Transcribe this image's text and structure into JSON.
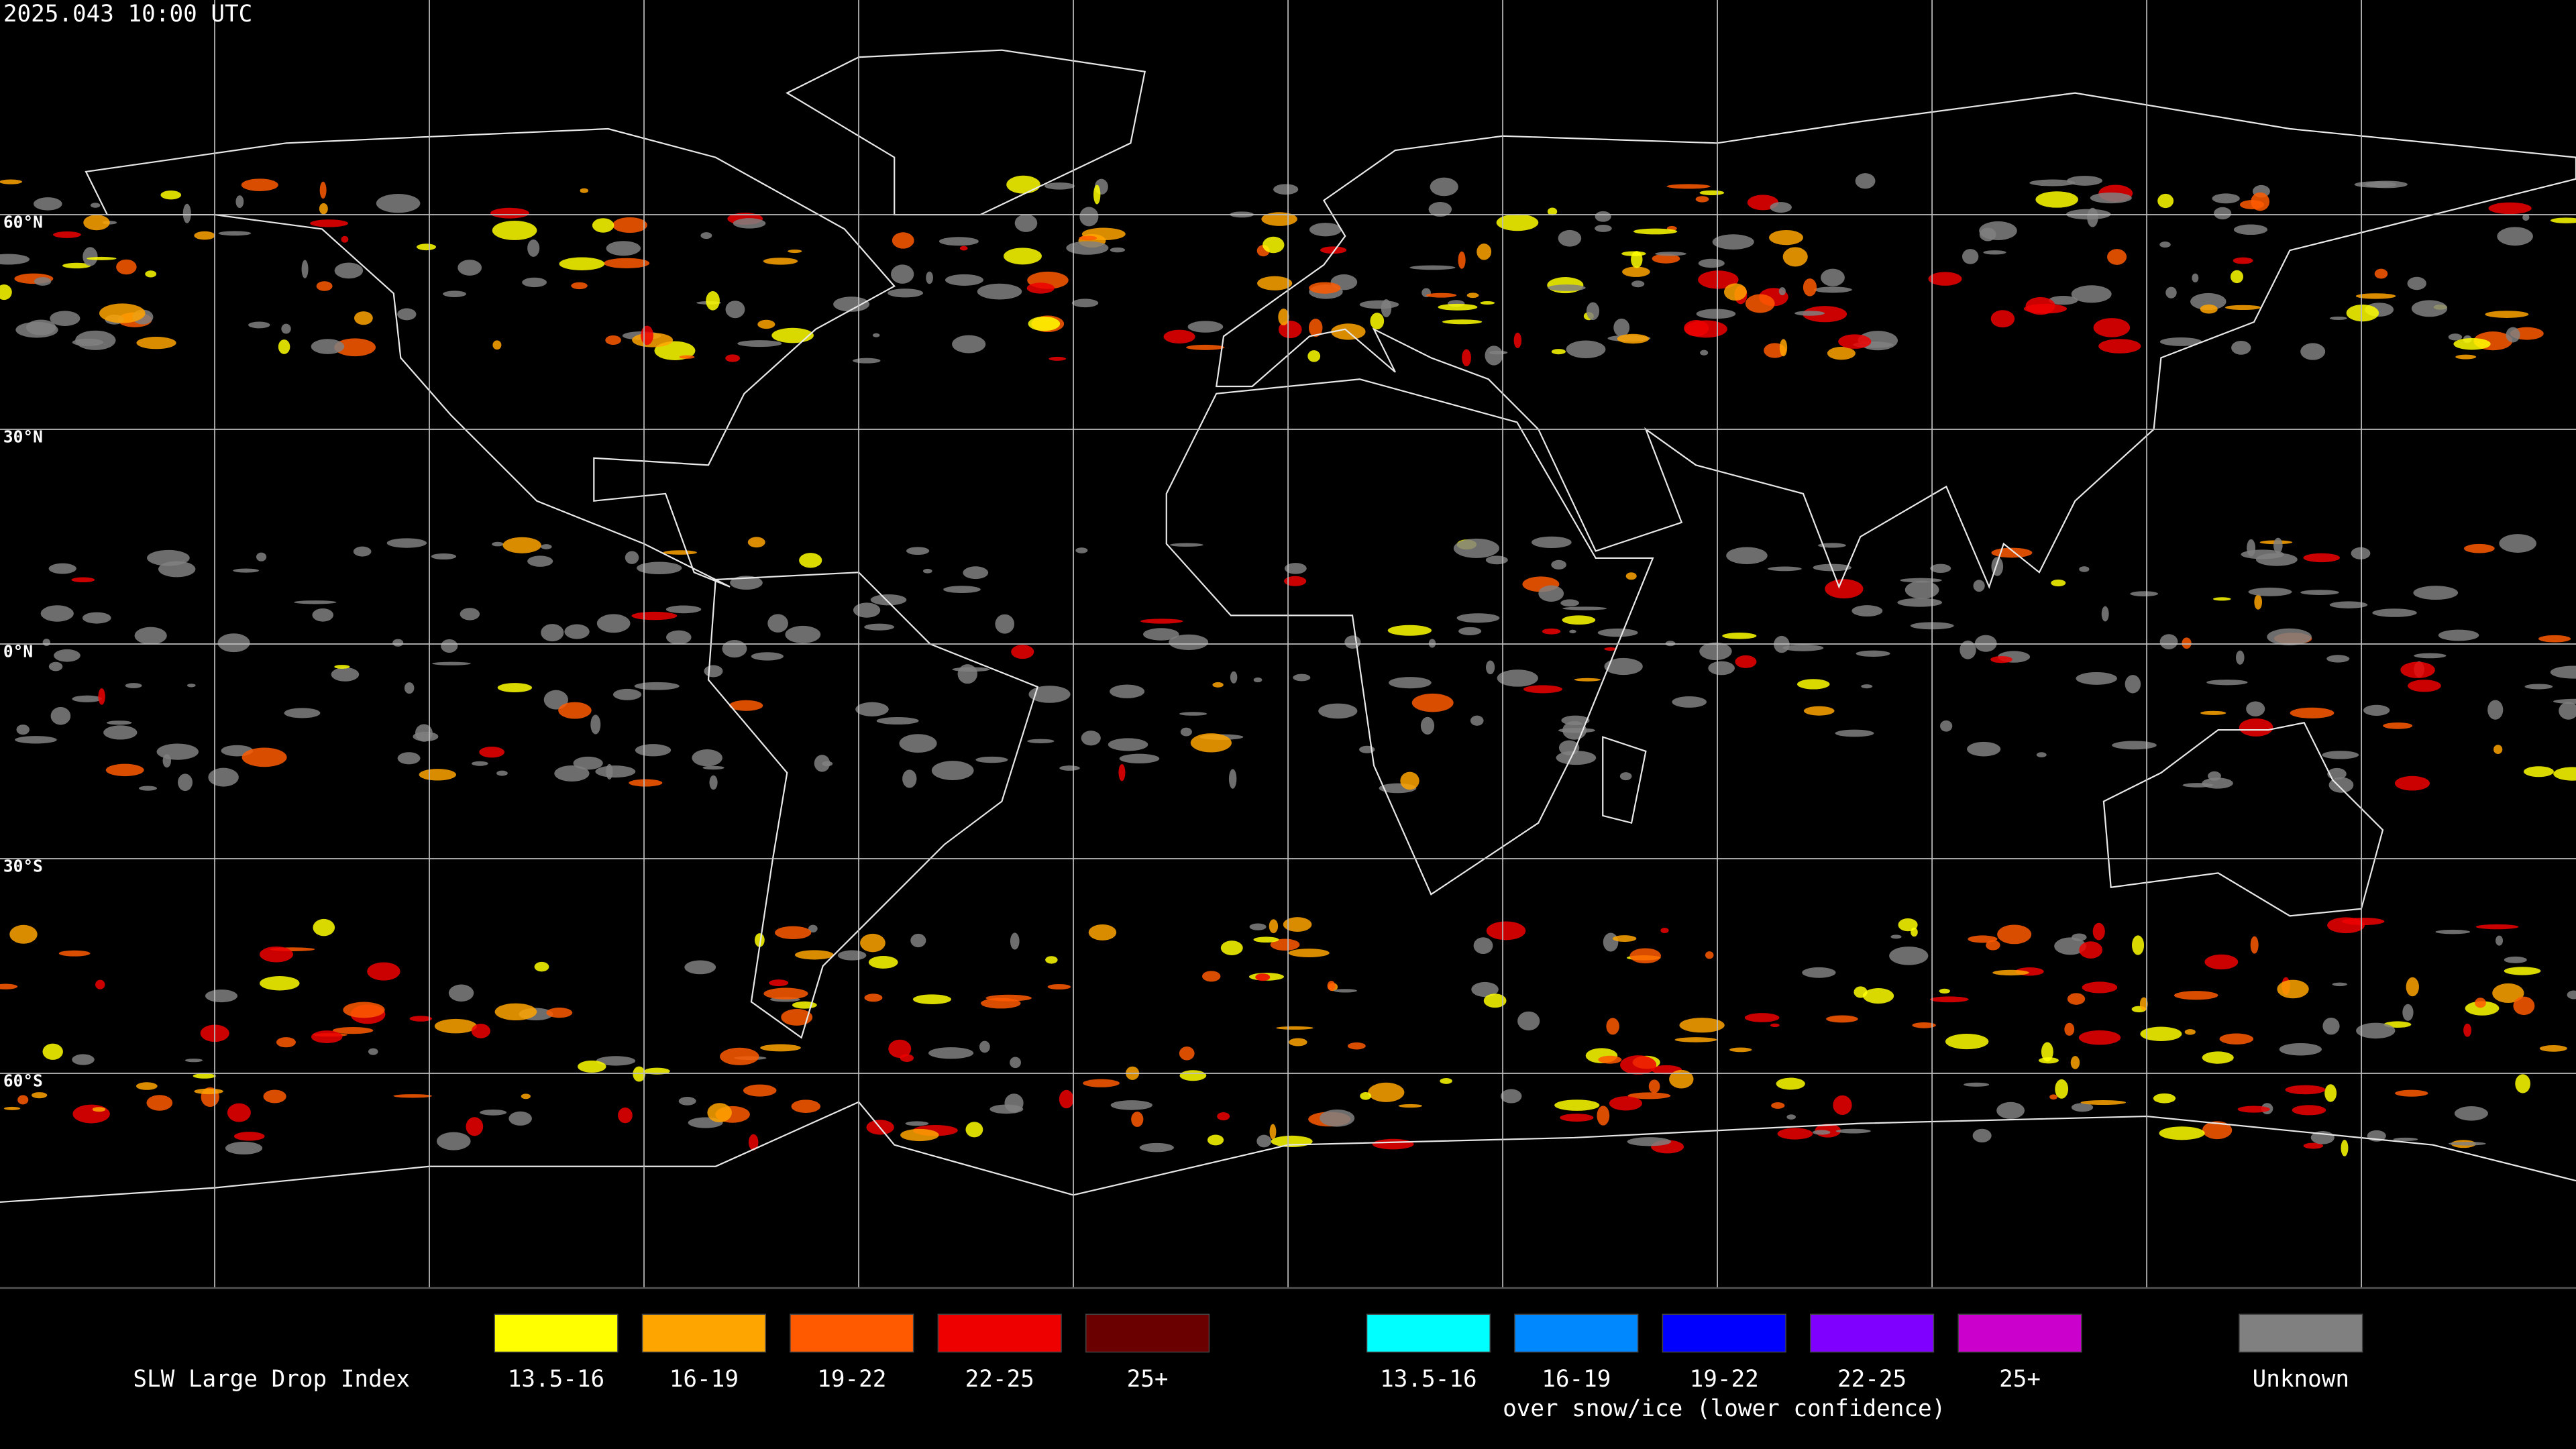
{
  "header": {
    "timestamp": "2025.043 10:00 UTC"
  },
  "map": {
    "lat_labels": [
      "60°N",
      "30°N",
      "0°N",
      "30°S",
      "60°S"
    ]
  },
  "legend": {
    "title": "SLW Large Drop Index",
    "groups": [
      {
        "items": [
          {
            "label": "13.5-16",
            "color": "#ffff00"
          },
          {
            "label": "16-19",
            "color": "#ffa500"
          },
          {
            "label": "19-22",
            "color": "#ff5a00"
          },
          {
            "label": "22-25",
            "color": "#ee0000"
          },
          {
            "label": "25+",
            "color": "#6b0000"
          }
        ]
      },
      {
        "items": [
          {
            "label": "13.5-16",
            "color": "#00ffff"
          },
          {
            "label": "16-19",
            "color": "#0088ff"
          },
          {
            "label": "19-22",
            "color": "#0000ff"
          },
          {
            "label": "22-25",
            "color": "#8000ff"
          },
          {
            "label": "25+",
            "color": "#cc00cc"
          }
        ],
        "caption": "over snow/ice (lower confidence)"
      },
      {
        "items": [
          {
            "label": "Unknown",
            "color": "#808080"
          }
        ]
      }
    ]
  }
}
